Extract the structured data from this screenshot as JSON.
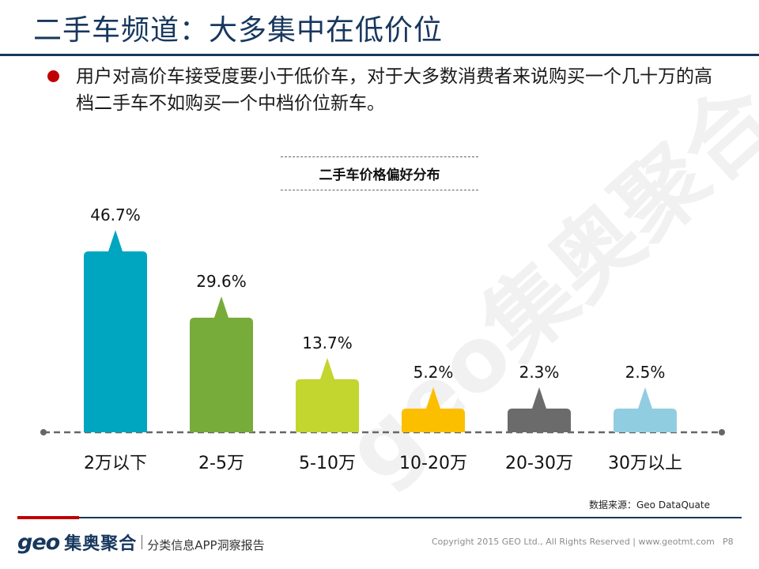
{
  "slide": {
    "title": "二手车频道：大多集中在低价位",
    "bullet": "用户对高价车接受度要小于低价车，对于大多数消费者来说购买一个几十万的高档二手车不如购买一个中档价位新车。"
  },
  "watermark": "geo集奥聚合",
  "chart_data": {
    "type": "bar",
    "title": "二手车价格偏好分布",
    "xlabel": "",
    "ylabel": "",
    "categories": [
      "2万以下",
      "2-5万",
      "5-10万",
      "10-20万",
      "20-30万",
      "30万以上"
    ],
    "values": [
      46.7,
      29.6,
      13.7,
      5.2,
      2.3,
      2.5
    ],
    "value_labels": [
      "46.7%",
      "29.6%",
      "13.7%",
      "5.2%",
      "2.3%",
      "2.5%"
    ],
    "unit": "%",
    "bar_colors": [
      "#00a5bf",
      "#77ab3a",
      "#c3d52f",
      "#fcbf00",
      "#6b6b6b",
      "#91cde0"
    ],
    "ylim": [
      0,
      50
    ],
    "grid": false,
    "baseline_style": "dashed",
    "legend": "none"
  },
  "source": "数据来源：Geo DataQuate",
  "footer": {
    "logo_latin": "geo",
    "logo_cn": "集奥聚合",
    "subtitle": "分类信息APP洞察报告",
    "copyright": "Copyright 2015 GEO Ltd., All Rights Reserved  |  www.geotmt.com",
    "page": "P8"
  },
  "colors": {
    "title": "#17375e",
    "bullet_dot": "#c00000",
    "footer_red": "#c00000",
    "footer_blue": "#17375e",
    "baseline": "#666666"
  }
}
